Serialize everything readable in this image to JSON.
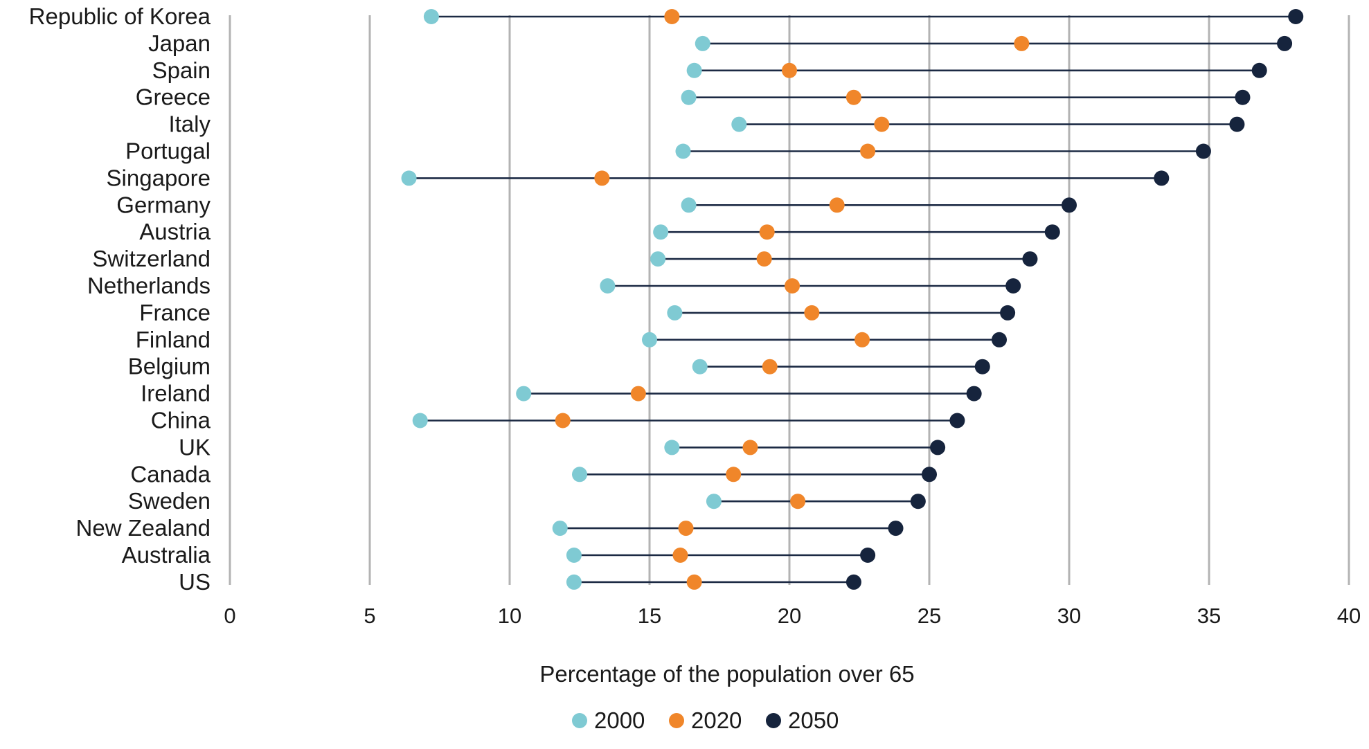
{
  "chart_data": {
    "type": "dot-range",
    "orientation": "horizontal",
    "title": "",
    "xlabel": "Percentage of the population over 65",
    "ylabel": "",
    "xlim": [
      0,
      40
    ],
    "xticks": [
      "0",
      "5",
      "10",
      "15",
      "20",
      "25",
      "30",
      "35",
      "40"
    ],
    "grid": "vertical",
    "legend_position": "bottom",
    "line_color": "#1c2a44",
    "categories": [
      "Republic of Korea",
      "Japan",
      "Spain",
      "Greece",
      "Italy",
      "Portugal",
      "Singapore",
      "Germany",
      "Austria",
      "Switzerland",
      "Netherlands",
      "France",
      "Finland",
      "Belgium",
      "Ireland",
      "China",
      "UK",
      "Canada",
      "Sweden",
      "New Zealand",
      "Australia",
      "US"
    ],
    "series": [
      {
        "name": "2000",
        "color": "#7fcad3",
        "values": [
          7.2,
          16.9,
          16.6,
          16.4,
          18.2,
          16.2,
          6.4,
          16.4,
          15.4,
          15.3,
          13.5,
          15.9,
          15.0,
          16.8,
          10.5,
          6.8,
          15.8,
          12.5,
          17.3,
          11.8,
          12.3,
          12.3
        ]
      },
      {
        "name": "2020",
        "color": "#f0862a",
        "values": [
          15.8,
          28.3,
          20.0,
          22.3,
          23.3,
          22.8,
          13.3,
          21.7,
          19.2,
          19.1,
          20.1,
          20.8,
          22.6,
          19.3,
          14.6,
          11.9,
          18.6,
          18.0,
          20.3,
          16.3,
          16.1,
          16.6
        ]
      },
      {
        "name": "2050",
        "color": "#16243d",
        "values": [
          38.1,
          37.7,
          36.8,
          36.2,
          36.0,
          34.8,
          33.3,
          30.0,
          29.4,
          28.6,
          28.0,
          27.8,
          27.5,
          26.9,
          26.6,
          26.0,
          25.3,
          25.0,
          24.6,
          23.8,
          22.8,
          22.3
        ]
      }
    ]
  }
}
